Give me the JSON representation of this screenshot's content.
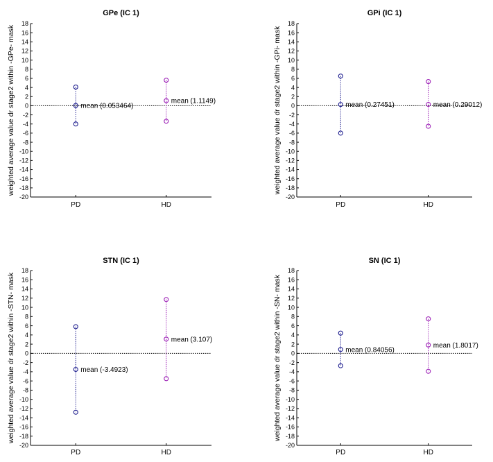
{
  "colors": {
    "pd": "#1f1f8f",
    "hd": "#9b1fb5",
    "axis": "#000000",
    "zero_line": "#000000"
  },
  "chart_data": [
    {
      "type": "scatter",
      "title": "GPe (IC 1)",
      "ylabel": "weighted average value dr stage2 within -GPe- mask",
      "categories": [
        "PD",
        "HD"
      ],
      "ylim": [
        -20,
        18
      ],
      "yticks": [
        18,
        16,
        14,
        12,
        10,
        8,
        6,
        4,
        2,
        0,
        -2,
        -4,
        -6,
        -8,
        -10,
        -12,
        -14,
        -16,
        -18,
        -20
      ],
      "series": [
        {
          "mean": 0.053464,
          "upper": 4.1,
          "lower": -4.0,
          "label": "mean (0.053464)",
          "color": "#1f1f8f"
        },
        {
          "mean": 1.1149,
          "upper": 5.6,
          "lower": -3.4,
          "label": "mean (1.1149)",
          "color": "#9b1fb5"
        }
      ]
    },
    {
      "type": "scatter",
      "title": "GPi (IC 1)",
      "ylabel": "weighted average value dr stage2 within -GPi- mask",
      "categories": [
        "PD",
        "HD"
      ],
      "ylim": [
        -20,
        18
      ],
      "yticks": [
        18,
        16,
        14,
        12,
        10,
        8,
        6,
        4,
        2,
        0,
        -2,
        -4,
        -6,
        -8,
        -10,
        -12,
        -14,
        -16,
        -18,
        -20
      ],
      "series": [
        {
          "mean": 0.27451,
          "upper": 6.5,
          "lower": -6.0,
          "label": "mean (0.27451)",
          "color": "#1f1f8f"
        },
        {
          "mean": 0.29012,
          "upper": 5.3,
          "lower": -4.5,
          "label": "mean (0.29012)",
          "color": "#9b1fb5"
        }
      ]
    },
    {
      "type": "scatter",
      "title": "STN (IC 1)",
      "ylabel": "weighted average value dr stage2 within -STN- mask",
      "categories": [
        "PD",
        "HD"
      ],
      "ylim": [
        -20,
        18
      ],
      "yticks": [
        18,
        16,
        14,
        12,
        10,
        8,
        6,
        4,
        2,
        0,
        -2,
        -4,
        -6,
        -8,
        -10,
        -12,
        -14,
        -16,
        -18,
        -20
      ],
      "series": [
        {
          "mean": -3.4923,
          "upper": 5.8,
          "lower": -12.8,
          "label": "mean (-3.4923)",
          "color": "#1f1f8f"
        },
        {
          "mean": 3.107,
          "upper": 11.7,
          "lower": -5.5,
          "label": "mean (3.107)",
          "color": "#9b1fb5"
        }
      ]
    },
    {
      "type": "scatter",
      "title": "SN (IC 1)",
      "ylabel": "weighted average value dr stage2 within -SN- mask",
      "categories": [
        "PD",
        "HD"
      ],
      "ylim": [
        -20,
        18
      ],
      "yticks": [
        18,
        16,
        14,
        12,
        10,
        8,
        6,
        4,
        2,
        0,
        -2,
        -4,
        -6,
        -8,
        -10,
        -12,
        -14,
        -16,
        -18,
        -20
      ],
      "series": [
        {
          "mean": 0.84056,
          "upper": 4.4,
          "lower": -2.7,
          "label": "mean (0.84056)",
          "color": "#1f1f8f"
        },
        {
          "mean": 1.8017,
          "upper": 7.5,
          "lower": -3.9,
          "label": "mean (1.8017)",
          "color": "#9b1fb5"
        }
      ]
    }
  ]
}
